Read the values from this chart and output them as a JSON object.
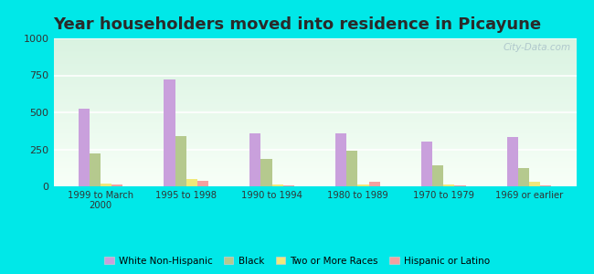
{
  "title": "Year householders moved into residence in Picayune",
  "categories": [
    "1999 to March\n2000",
    "1995 to 1998",
    "1990 to 1994",
    "1980 to 1989",
    "1970 to 1979",
    "1969 or earlier"
  ],
  "series": {
    "White Non-Hispanic": [
      525,
      720,
      360,
      355,
      300,
      335
    ],
    "Black": [
      220,
      340,
      185,
      240,
      145,
      125
    ],
    "Two or More Races": [
      18,
      50,
      10,
      10,
      10,
      30
    ],
    "Hispanic or Latino": [
      10,
      40,
      8,
      30,
      5,
      8
    ]
  },
  "colors": {
    "White Non-Hispanic": "#c9a0dc",
    "Black": "#b5c98e",
    "Two or More Races": "#f0e87a",
    "Hispanic or Latino": "#f4a0a0"
  },
  "ylim": [
    0,
    1000
  ],
  "yticks": [
    0,
    250,
    500,
    750,
    1000
  ],
  "background_outer": "#00e8e8",
  "watermark": "City-Data.com",
  "bar_width": 0.13,
  "title_fontsize": 13,
  "title_color": "#2a2a2a"
}
